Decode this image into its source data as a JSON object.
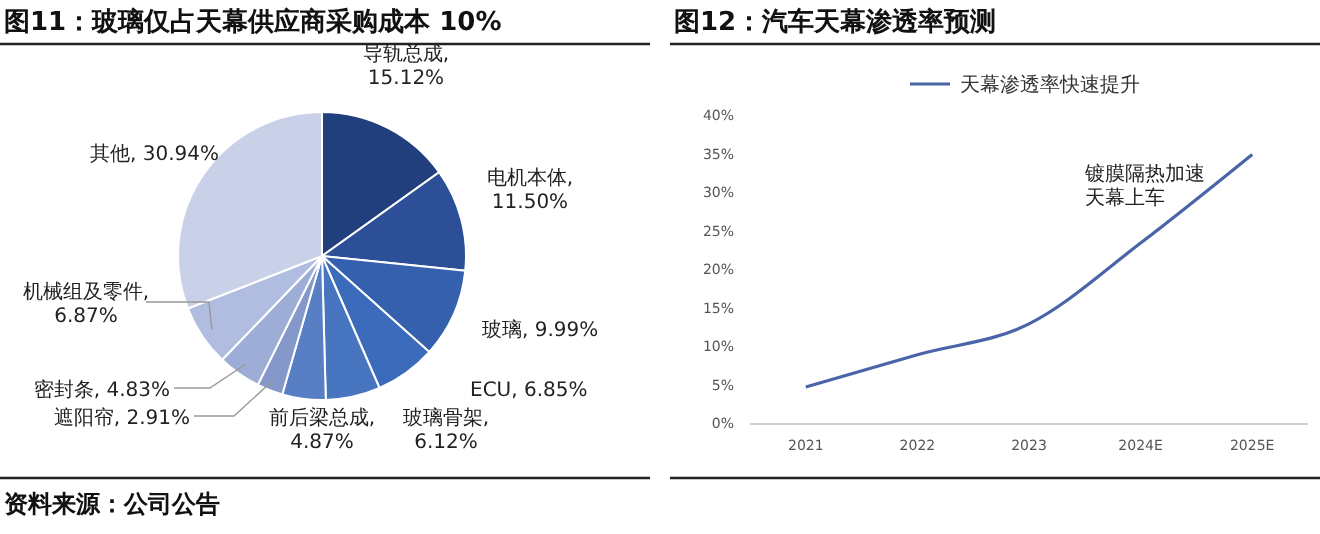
{
  "chart_data": [
    {
      "type": "pie",
      "title": "图11：玻璃仅占天幕供应商采购成本 10%",
      "categories": [
        "导轨总成",
        "电机本体",
        "玻璃",
        "ECU",
        "玻璃骨架",
        "前后梁总成",
        "遮阳帘",
        "密封条",
        "机械组及零件",
        "其他"
      ],
      "values": [
        15.12,
        11.5,
        9.99,
        6.85,
        6.12,
        4.87,
        2.91,
        4.83,
        6.87,
        30.94
      ],
      "colors": [
        "#203f7c",
        "#2c4f98",
        "#3560ad",
        "#3d6bbb",
        "#4775c0",
        "#587fc4",
        "#8499c9",
        "#9dadd5",
        "#b1bde0",
        "#c9d1e8"
      ],
      "value_labels": [
        ", 15.12%",
        ", 11.50%",
        ", 9.99%",
        ", 6.85%",
        ", 6.12%",
        ", 4.87%",
        ", 2.91%",
        ", 4.83%",
        ", 6.87%",
        ", 30.94%"
      ],
      "annotations": [
        "资料来源：公司公告"
      ]
    },
    {
      "type": "line",
      "title": "图12：汽车天幕渗透率预测",
      "categories": [
        "2021",
        "2022",
        "2023",
        "2024E",
        "2025E"
      ],
      "series": [
        {
          "name": "天幕渗透率快速提升",
          "color": "#4a64a8",
          "values": [
            4.8,
            9,
            13,
            23.5,
            35
          ]
        }
      ],
      "ylim": [
        0,
        40
      ],
      "yticks": [
        {
          "value": 0,
          "label": "0%"
        },
        {
          "value": 5,
          "label": "5%"
        },
        {
          "value": 10,
          "label": "10%"
        },
        {
          "value": 15,
          "label": "15%"
        },
        {
          "value": 20,
          "label": "20%"
        },
        {
          "value": 25,
          "label": "25%"
        },
        {
          "value": 30,
          "label": "30%"
        },
        {
          "value": 35,
          "label": "35%"
        },
        {
          "value": 40,
          "label": "40%"
        }
      ],
      "grid": false,
      "legend": "top",
      "annotations": [
        "镀膜隔热加速天幕上车"
      ]
    }
  ]
}
